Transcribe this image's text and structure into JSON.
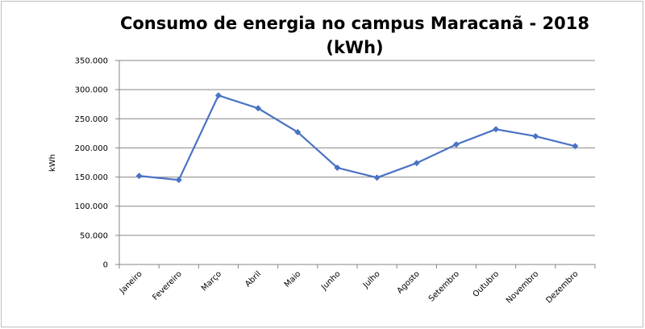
{
  "chart_data": {
    "type": "line",
    "title": "Consumo de energia no campus Maracanã - 2018 (kWh)",
    "y_label": "kWh",
    "categories": [
      "Janeiro",
      "Fevereiro",
      "Março",
      "Abril",
      "Maio",
      "Junho",
      "Julho",
      "Agosto",
      "Setembro",
      "Outubro",
      "Novembro",
      "Dezembro"
    ],
    "series": [
      {
        "name": "kWh",
        "color": "#4a72c4",
        "values": [
          152000,
          145000,
          290000,
          268000,
          227000,
          166000,
          149000,
          174000,
          206000,
          232000,
          220000,
          203000
        ]
      }
    ],
    "ylim": [
      0,
      350000
    ],
    "yticks": [
      0,
      {
        "value": 50000,
        "label": "50.000"
      },
      {
        "value": 100000,
        "label": "100.000"
      },
      {
        "value": 150000,
        "label": "150.000"
      },
      {
        "value": 200000,
        "label": "200.000"
      },
      {
        "value": 250000,
        "label": "250.000"
      },
      {
        "value": 300000,
        "label": "300.000"
      },
      {
        "value": 350000,
        "label": "350.000"
      }
    ],
    "grid": true
  }
}
